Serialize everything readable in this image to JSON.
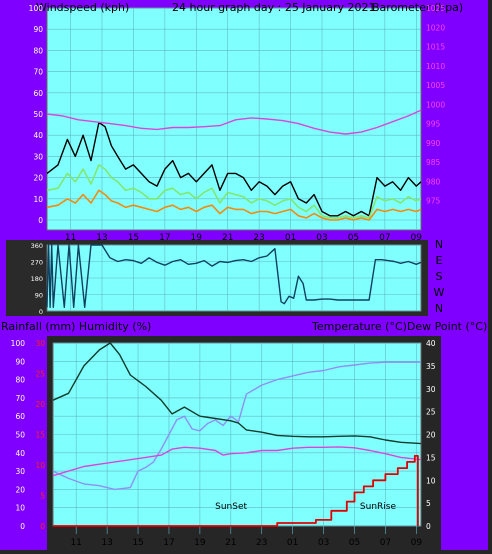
{
  "colors": {
    "frame": "#7f00ff",
    "plot_bg": "#80ffff",
    "grid": "#5fb8c8",
    "gust": "#000000",
    "wind_avg": "#80e870",
    "wind_low": "#f08c10",
    "barometer": "#d848d8",
    "wind_dir": "#104060",
    "temp": "#103c2c",
    "dewpoint": "#d848d8",
    "humidity": "#9090f0",
    "rain": "#e00000",
    "axis_white": "#ffffff",
    "axis_magenta": "#ff40ff",
    "axis_red": "#ff2020",
    "label_dark": "#000000"
  },
  "chart_data": [
    {
      "type": "line",
      "title": "24 hour graph day : 25 January 2021",
      "ylabel": "Windspeed (kph)",
      "y2label": "Barometer (hpa)",
      "x_ticks": [
        "11",
        "13",
        "15",
        "17",
        "19",
        "21",
        "23",
        "01",
        "03",
        "05",
        "07",
        "09"
      ],
      "x_range": [
        9.5,
        33.3
      ],
      "ylim": [
        0,
        100
      ],
      "y_ticks": [
        "0",
        "10",
        "20",
        "30",
        "40",
        "50",
        "60",
        "70",
        "80",
        "90",
        "100"
      ],
      "y2lim": [
        970,
        1025
      ],
      "y2_ticks": [
        "975",
        "980",
        "985",
        "990",
        "995",
        "1000",
        "1005",
        "1010",
        "1015",
        "1020",
        "1025"
      ],
      "series": [
        {
          "key": "gust",
          "x": [
            9.5,
            10.2,
            10.8,
            11.3,
            11.8,
            12.3,
            12.8,
            13.2,
            13.6,
            14.0,
            14.5,
            15.0,
            15.5,
            16.0,
            16.5,
            17.0,
            17.5,
            18.0,
            18.5,
            19.0,
            19.5,
            20.0,
            20.5,
            21.0,
            21.5,
            22.0,
            22.5,
            23.0,
            23.5,
            24.0,
            24.5,
            25.0,
            25.5,
            26.0,
            26.5,
            27.0,
            27.5,
            28.0,
            28.5,
            29.0,
            29.5,
            30.0,
            30.5,
            31.0,
            31.5,
            32.0,
            32.5,
            33.0,
            33.3
          ],
          "y": [
            22,
            26,
            38,
            30,
            40,
            28,
            46,
            44,
            35,
            30,
            24,
            26,
            22,
            18,
            16,
            24,
            28,
            20,
            22,
            18,
            22,
            26,
            14,
            22,
            22,
            20,
            14,
            18,
            16,
            12,
            16,
            18,
            10,
            8,
            12,
            4,
            2,
            2,
            4,
            2,
            4,
            2,
            20,
            16,
            18,
            14,
            20,
            16,
            18
          ]
        },
        {
          "key": "wind_avg",
          "x": [
            9.5,
            10.2,
            10.8,
            11.3,
            11.8,
            12.3,
            12.8,
            13.2,
            13.6,
            14.0,
            14.5,
            15.0,
            15.5,
            16.0,
            16.5,
            17.0,
            17.5,
            18.0,
            18.5,
            19.0,
            19.5,
            20.0,
            20.5,
            21.0,
            21.5,
            22.0,
            22.5,
            23.0,
            23.5,
            24.0,
            24.5,
            25.0,
            25.5,
            26.0,
            26.5,
            27.0,
            27.5,
            28.0,
            28.5,
            29.0,
            29.5,
            30.0,
            30.5,
            31.0,
            31.5,
            32.0,
            32.5,
            33.0,
            33.3
          ],
          "y": [
            14,
            15,
            22,
            18,
            24,
            17,
            26,
            24,
            20,
            18,
            14,
            15,
            13,
            10,
            10,
            14,
            15,
            12,
            13,
            10,
            13,
            15,
            8,
            13,
            12,
            11,
            8,
            10,
            9,
            7,
            9,
            10,
            6,
            4,
            7,
            2,
            1,
            1,
            2,
            1,
            2,
            1,
            11,
            9,
            10,
            8,
            11,
            9,
            10
          ]
        },
        {
          "key": "wind_low",
          "x": [
            9.5,
            10.2,
            10.8,
            11.3,
            11.8,
            12.3,
            12.8,
            13.2,
            13.6,
            14.0,
            14.5,
            15.0,
            15.5,
            16.0,
            16.5,
            17.0,
            17.5,
            18.0,
            18.5,
            19.0,
            19.5,
            20.0,
            20.5,
            21.0,
            21.5,
            22.0,
            22.5,
            23.0,
            23.5,
            24.0,
            24.5,
            25.0,
            25.5,
            26.0,
            26.5,
            27.0,
            27.5,
            28.0,
            28.5,
            29.0,
            29.5,
            30.0,
            30.5,
            31.0,
            31.5,
            32.0,
            32.5,
            33.0,
            33.3
          ],
          "y": [
            6,
            7,
            10,
            8,
            12,
            8,
            14,
            12,
            9,
            8,
            6,
            7,
            6,
            5,
            4,
            6,
            7,
            5,
            6,
            4,
            6,
            7,
            3,
            6,
            5,
            5,
            3,
            4,
            4,
            3,
            4,
            5,
            2,
            1,
            3,
            1,
            0,
            0,
            1,
            0,
            1,
            0,
            5,
            4,
            5,
            4,
            5,
            4,
            5
          ]
        },
        {
          "key": "barometer",
          "axis": "y2",
          "x": [
            9.5,
            10.5,
            11.5,
            12.5,
            13.5,
            14.5,
            15.5,
            16.5,
            17.5,
            18.5,
            19.5,
            20.5,
            21.5,
            22.5,
            23.5,
            24.5,
            25.5,
            26.5,
            27.5,
            28.5,
            29.5,
            30.5,
            31.5,
            32.5,
            33.3
          ],
          "y": [
            997.5,
            997,
            996,
            995.5,
            995,
            994.5,
            993.8,
            993.5,
            994,
            994,
            994.2,
            994.5,
            996,
            996.5,
            996.2,
            995.8,
            995,
            993.8,
            992.8,
            992.3,
            992.8,
            994,
            995.5,
            997,
            998.5
          ]
        }
      ]
    },
    {
      "type": "line",
      "x_range": [
        9.5,
        33.3
      ],
      "ylim": [
        0,
        360
      ],
      "y_ticks": [
        "0",
        "90",
        "180",
        "270",
        "360"
      ],
      "y_ticks_right": [
        "N",
        "W",
        "S",
        "E",
        "N"
      ],
      "series": [
        {
          "key": "wind_dir",
          "x": [
            9.5,
            9.6,
            9.7,
            9.8,
            9.9,
            10.2,
            10.6,
            10.9,
            11.2,
            11.5,
            11.9,
            12.3,
            12.6,
            13.0,
            13.5,
            14.0,
            14.5,
            15.0,
            15.5,
            16.0,
            16.5,
            17.0,
            17.5,
            18.0,
            18.5,
            19.0,
            19.5,
            20.0,
            20.5,
            21.0,
            21.5,
            22.0,
            22.5,
            23.0,
            23.5,
            24.0,
            24.4,
            24.6,
            24.9,
            25.2,
            25.5,
            25.8,
            26.0,
            26.5,
            27.0,
            27.5,
            28.0,
            28.5,
            29.0,
            29.5,
            30.0,
            30.4,
            30.8,
            31.2,
            31.6,
            32.0,
            32.5,
            33.0,
            33.3
          ],
          "y": [
            20,
            360,
            20,
            360,
            20,
            360,
            20,
            360,
            20,
            360,
            20,
            360,
            360,
            360,
            290,
            270,
            280,
            275,
            260,
            290,
            265,
            250,
            270,
            280,
            255,
            260,
            275,
            245,
            270,
            265,
            275,
            280,
            270,
            290,
            300,
            340,
            50,
            40,
            80,
            70,
            190,
            150,
            60,
            60,
            65,
            65,
            60,
            60,
            60,
            60,
            60,
            280,
            280,
            275,
            270,
            260,
            270,
            255,
            265
          ]
        }
      ]
    },
    {
      "type": "line",
      "ylabel": "Rainfall (mm)  Humidity (%)",
      "y2label": "Temperature (°C)Dew Point (°C)",
      "x_ticks": [
        "11",
        "13",
        "15",
        "17",
        "19",
        "21",
        "23",
        "01",
        "03",
        "05",
        "07",
        "09"
      ],
      "x_range": [
        9.5,
        33.3
      ],
      "ylim": [
        0,
        100
      ],
      "y_ticks": [
        "0",
        "10",
        "20",
        "30",
        "40",
        "50",
        "60",
        "70",
        "80",
        "90",
        "100"
      ],
      "rain_ticks": [
        "0",
        "5",
        "10",
        "15",
        "20",
        "25",
        "30"
      ],
      "rain_lim": [
        0,
        30
      ],
      "y2lim": [
        0,
        40
      ],
      "y2_ticks": [
        "0",
        "5",
        "10",
        "15",
        "20",
        "25",
        "30",
        "35",
        "40"
      ],
      "annotations": [
        {
          "text": "SunSet",
          "x": 20.5
        },
        {
          "text": "SunRise",
          "x": 30.0
        }
      ],
      "series": [
        {
          "key": "temp",
          "axis": "y2",
          "x": [
            9.5,
            10.5,
            11.5,
            12.5,
            13.2,
            13.8,
            14.5,
            15.5,
            16.5,
            17.2,
            18.0,
            19.0,
            20.0,
            21.0,
            21.5,
            22.0,
            23.0,
            24.0,
            25.0,
            26.0,
            27.0,
            28.0,
            29.0,
            30.0,
            31.0,
            32.0,
            33.3
          ],
          "y": [
            27.5,
            29,
            35,
            38.5,
            40,
            37.5,
            33,
            30.5,
            27.5,
            24.5,
            26,
            24,
            23.5,
            23,
            22.5,
            21,
            20.5,
            19.8,
            19.6,
            19.5,
            19.5,
            19.6,
            19.7,
            19.5,
            18.8,
            18.3,
            18
          ]
        },
        {
          "key": "dewpoint",
          "axis": "y2",
          "x": [
            9.5,
            10.5,
            11.5,
            12.5,
            13.5,
            14.5,
            15.5,
            16.5,
            17.2,
            18.0,
            19.0,
            20.0,
            20.5,
            21.0,
            22.0,
            23.0,
            24.0,
            25.0,
            26.0,
            27.0,
            28.0,
            29.0,
            30.0,
            31.0,
            32.0,
            33.3
          ],
          "y": [
            11,
            12,
            13,
            13.5,
            14,
            14.5,
            15,
            15.5,
            16.8,
            17.2,
            17,
            16.5,
            15.5,
            15.8,
            16,
            16.5,
            16.5,
            17,
            17.2,
            17.2,
            17.3,
            17.1,
            16.5,
            15.8,
            15,
            14.5
          ]
        },
        {
          "key": "humidity",
          "x": [
            9.5,
            10.5,
            11.5,
            12.5,
            13.5,
            14.5,
            15.0,
            15.5,
            16.0,
            16.5,
            17.0,
            17.5,
            18.0,
            18.5,
            19.0,
            19.5,
            20.0,
            20.5,
            21.0,
            21.5,
            22.0,
            23.0,
            24.0,
            25.0,
            26.0,
            27.0,
            28.0,
            29.0,
            30.0,
            31.0,
            32.0,
            33.3
          ],
          "y": [
            30,
            26,
            23,
            22,
            20,
            21,
            30,
            32,
            35,
            42,
            50,
            58,
            60,
            53,
            52,
            56,
            58,
            55,
            60,
            57,
            72,
            77,
            80,
            82,
            84,
            85,
            87,
            88,
            89,
            89.5,
            89.5,
            89.5
          ]
        },
        {
          "key": "rain",
          "axis": "rain",
          "x": [
            9.5,
            24.0,
            24.0,
            26.5,
            26.5,
            27.5,
            27.5,
            28.5,
            28.5,
            29.0,
            29.0,
            29.6,
            29.6,
            30.2,
            30.2,
            31.0,
            31.0,
            31.8,
            31.8,
            32.4,
            32.4,
            32.9,
            32.9,
            33.1,
            33.1
          ],
          "y": [
            0,
            0,
            0.5,
            0.5,
            1,
            1,
            2.5,
            2.5,
            4,
            4,
            5.5,
            5.5,
            6.5,
            6.5,
            7.5,
            7.5,
            8.5,
            8.5,
            9.5,
            9.5,
            10.5,
            10.5,
            11.5,
            11.5,
            0
          ]
        }
      ]
    }
  ]
}
